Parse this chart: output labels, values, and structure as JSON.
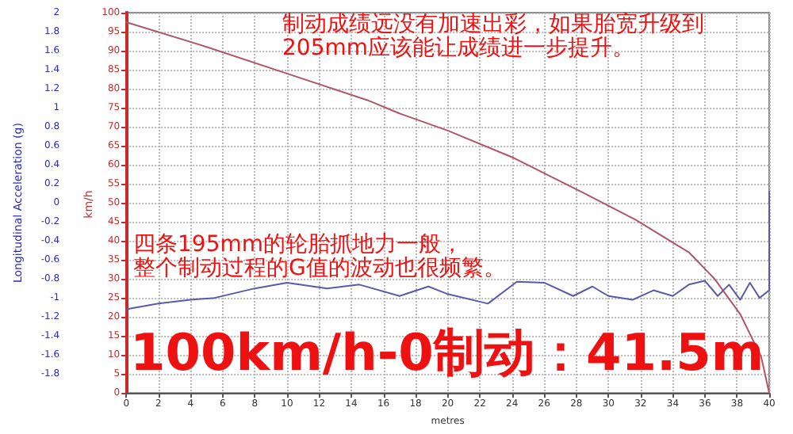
{
  "chart_data": {
    "type": "line",
    "xlabel": "metres",
    "ylabel": "km/h",
    "y2label": "Longitudinal Acceleration (g)",
    "annotations": [
      "制动成绩远没有加速出彩，如果胎宽升级到",
      "205mm应该能让成绩进一步提升。",
      "四条195mm的轮胎抓地力一般，",
      "整个制动过程的G值的波动也很频繁。",
      "100km/h-0制动：41.5m"
    ],
    "series": [
      {
        "color": "#b0566a",
        "axis": "y",
        "x": [
          0,
          5,
          10,
          15,
          17,
          20,
          24,
          28.5,
          31.7,
          35,
          36.6,
          38.2,
          39.5,
          40
        ],
        "values": [
          97.5,
          91,
          84,
          77,
          73.5,
          69,
          62,
          52.5,
          45.5,
          37,
          30,
          20.7,
          9.5,
          0
        ]
      },
      {
        "color": "#5a5aa8",
        "axis": "y2",
        "x": [
          0,
          2,
          4,
          5.5,
          8,
          10,
          12.5,
          14.5,
          17,
          18.8,
          20,
          22.5,
          24.3,
          26,
          27.8,
          29,
          30,
          31.5,
          32.8,
          34,
          35,
          36,
          36.8,
          37.5,
          38.2,
          38.8,
          39.4,
          40,
          40
        ],
        "values": [
          -1.12,
          -1.06,
          -1.02,
          -1.0,
          -0.9,
          -0.84,
          -0.9,
          -0.86,
          -0.98,
          -0.88,
          -0.96,
          -1.06,
          -0.83,
          -0.84,
          -0.98,
          -0.88,
          -0.98,
          -1.02,
          -0.92,
          -0.98,
          -0.86,
          -0.82,
          -0.98,
          -0.86,
          -1.02,
          -0.84,
          -1.0,
          -0.92,
          0.12
        ]
      }
    ],
    "xlim": [
      0,
      40
    ],
    "xticks": [
      0,
      2,
      4,
      6,
      8,
      10,
      12,
      14,
      16,
      18,
      20,
      22,
      24,
      26,
      28,
      30,
      32,
      34,
      36,
      38,
      40
    ],
    "y2lim": [
      -2,
      2
    ],
    "y2ticks": [
      -1.8,
      -1.6,
      -1.4,
      -1.2,
      -1,
      -0.8,
      -0.6,
      -0.4,
      -0.2,
      0,
      0.2,
      0.4,
      0.6,
      0.8,
      1,
      1.2,
      1.4,
      1.6,
      1.8,
      2
    ],
    "ylim": [
      0,
      100
    ],
    "yticks": [
      0,
      5,
      10,
      15,
      20,
      25,
      30,
      35,
      40,
      45,
      50,
      55,
      60,
      65,
      70,
      75,
      80,
      85,
      90,
      95,
      100
    ],
    "grid": true,
    "marker": "none",
    "line_style": "solid"
  }
}
